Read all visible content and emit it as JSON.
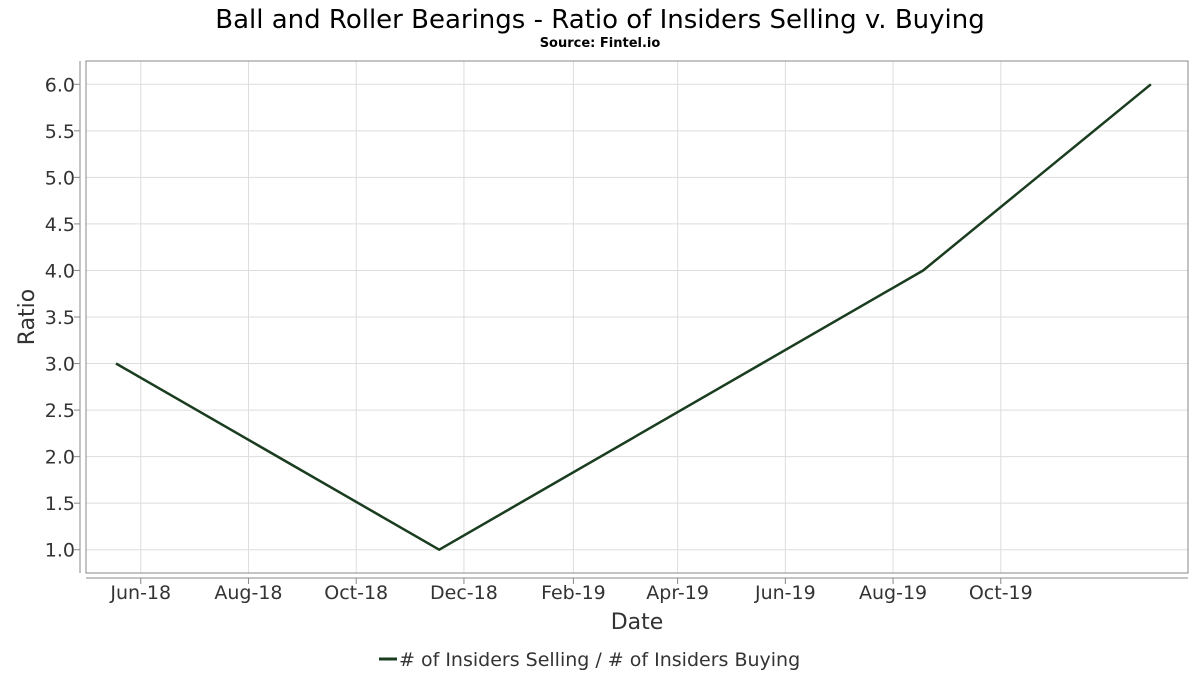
{
  "colors": {
    "series": "#1a3d1f",
    "grid": "#dddddd",
    "frame": "#888888"
  },
  "chart_data": {
    "type": "line",
    "title": "Ball and Roller Bearings - Ratio of Insiders Selling v. Buying",
    "subtitle": "Source: Fintel.io",
    "xlabel": "Date",
    "ylabel": "Ratio",
    "x_ticks": [
      "Jun-18",
      "Aug-18",
      "Oct-18",
      "Dec-18",
      "Feb-19",
      "Apr-19",
      "Jun-19",
      "Aug-19",
      "Oct-19"
    ],
    "x_tick_dates": [
      "2018-06-01",
      "2018-08-01",
      "2018-10-01",
      "2018-12-01",
      "2019-02-01",
      "2019-04-01",
      "2019-06-01",
      "2019-08-01",
      "2019-10-01"
    ],
    "y_ticks": [
      "1.0",
      "1.5",
      "2.0",
      "2.5",
      "3.0",
      "3.5",
      "4.0",
      "4.5",
      "5.0",
      "5.5",
      "6.0"
    ],
    "xlim": [
      "2018-05-01",
      "2020-01-15"
    ],
    "ylim": [
      0.75,
      6.25
    ],
    "grid": true,
    "legend_position": "bottom-center",
    "series": [
      {
        "name": "# of Insiders Selling / # of Insiders Buying",
        "x": [
          "2018-05-18",
          "2018-11-17",
          "2019-08-18",
          "2019-12-25"
        ],
        "values": [
          3.0,
          1.0,
          4.0,
          6.0
        ]
      }
    ]
  }
}
